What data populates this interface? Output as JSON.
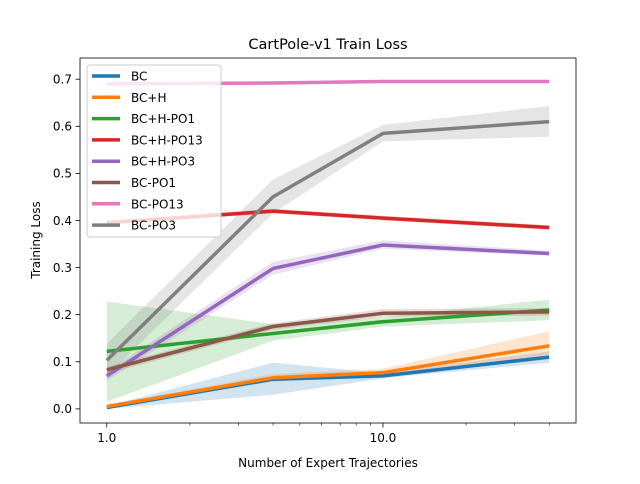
{
  "chart_data": {
    "type": "line",
    "title": "CartPole-v1 Train Loss",
    "xlabel": "Number of Expert Trajectories",
    "ylabel": "Training Loss",
    "xscale": "log",
    "xlim": [
      0.8,
      50
    ],
    "ylim": [
      -0.03,
      0.745
    ],
    "xticks": [
      {
        "value": 1,
        "label": "1.0"
      },
      {
        "value": 10,
        "label": "10.0"
      }
    ],
    "x_minor_ticks": [
      2,
      3,
      4,
      5,
      6,
      7,
      8,
      9,
      20,
      30,
      40
    ],
    "yticks": [
      {
        "value": 0.0,
        "label": "0.0"
      },
      {
        "value": 0.1,
        "label": "0.1"
      },
      {
        "value": 0.2,
        "label": "0.2"
      },
      {
        "value": 0.3,
        "label": "0.3"
      },
      {
        "value": 0.4,
        "label": "0.4"
      },
      {
        "value": 0.5,
        "label": "0.5"
      },
      {
        "value": 0.6,
        "label": "0.6"
      },
      {
        "value": 0.7,
        "label": "0.7"
      }
    ],
    "grid": false,
    "legend_position": "top-left",
    "x": [
      1,
      4,
      10,
      40
    ],
    "series": [
      {
        "name": "BC",
        "color": "#1f77b4",
        "values": [
          0.003,
          0.063,
          0.07,
          0.11
        ],
        "lower": [
          0.0,
          0.03,
          0.065,
          0.098
        ],
        "upper": [
          0.006,
          0.098,
          0.076,
          0.122
        ]
      },
      {
        "name": "BC+H",
        "color": "#ff7f0e",
        "values": [
          0.005,
          0.066,
          0.077,
          0.134
        ],
        "lower": [
          0.002,
          0.058,
          0.068,
          0.105
        ],
        "upper": [
          0.008,
          0.074,
          0.085,
          0.165
        ]
      },
      {
        "name": "BC+H-PO1",
        "color": "#2ca02c",
        "values": [
          0.122,
          0.16,
          0.185,
          0.21
        ],
        "lower": [
          0.015,
          0.145,
          0.175,
          0.188
        ],
        "upper": [
          0.228,
          0.18,
          0.195,
          0.232
        ]
      },
      {
        "name": "BC+H-PO13",
        "color": "#d62728",
        "values": [
          0.395,
          0.42,
          0.405,
          0.385
        ],
        "lower": [
          0.39,
          0.415,
          0.4,
          0.38
        ],
        "upper": [
          0.4,
          0.425,
          0.41,
          0.39
        ]
      },
      {
        "name": "BC+H-PO3",
        "color": "#9467bd",
        "values": [
          0.07,
          0.298,
          0.348,
          0.33
        ],
        "lower": [
          0.06,
          0.285,
          0.34,
          0.325
        ],
        "upper": [
          0.08,
          0.312,
          0.358,
          0.336
        ]
      },
      {
        "name": "BC-PO1",
        "color": "#8c564b",
        "values": [
          0.083,
          0.175,
          0.203,
          0.206
        ],
        "lower": [
          0.075,
          0.168,
          0.196,
          0.198
        ],
        "upper": [
          0.09,
          0.182,
          0.212,
          0.214
        ]
      },
      {
        "name": "BC-PO13",
        "color": "#e377c2",
        "values": [
          0.69,
          0.692,
          0.695,
          0.695
        ],
        "lower": [
          0.688,
          0.69,
          0.693,
          0.693
        ],
        "upper": [
          0.692,
          0.694,
          0.697,
          0.697
        ]
      },
      {
        "name": "BC-PO3",
        "color": "#7f7f7f",
        "values": [
          0.103,
          0.45,
          0.585,
          0.61
        ],
        "lower": [
          0.07,
          0.415,
          0.568,
          0.578
        ],
        "upper": [
          0.138,
          0.487,
          0.603,
          0.643
        ]
      }
    ]
  }
}
